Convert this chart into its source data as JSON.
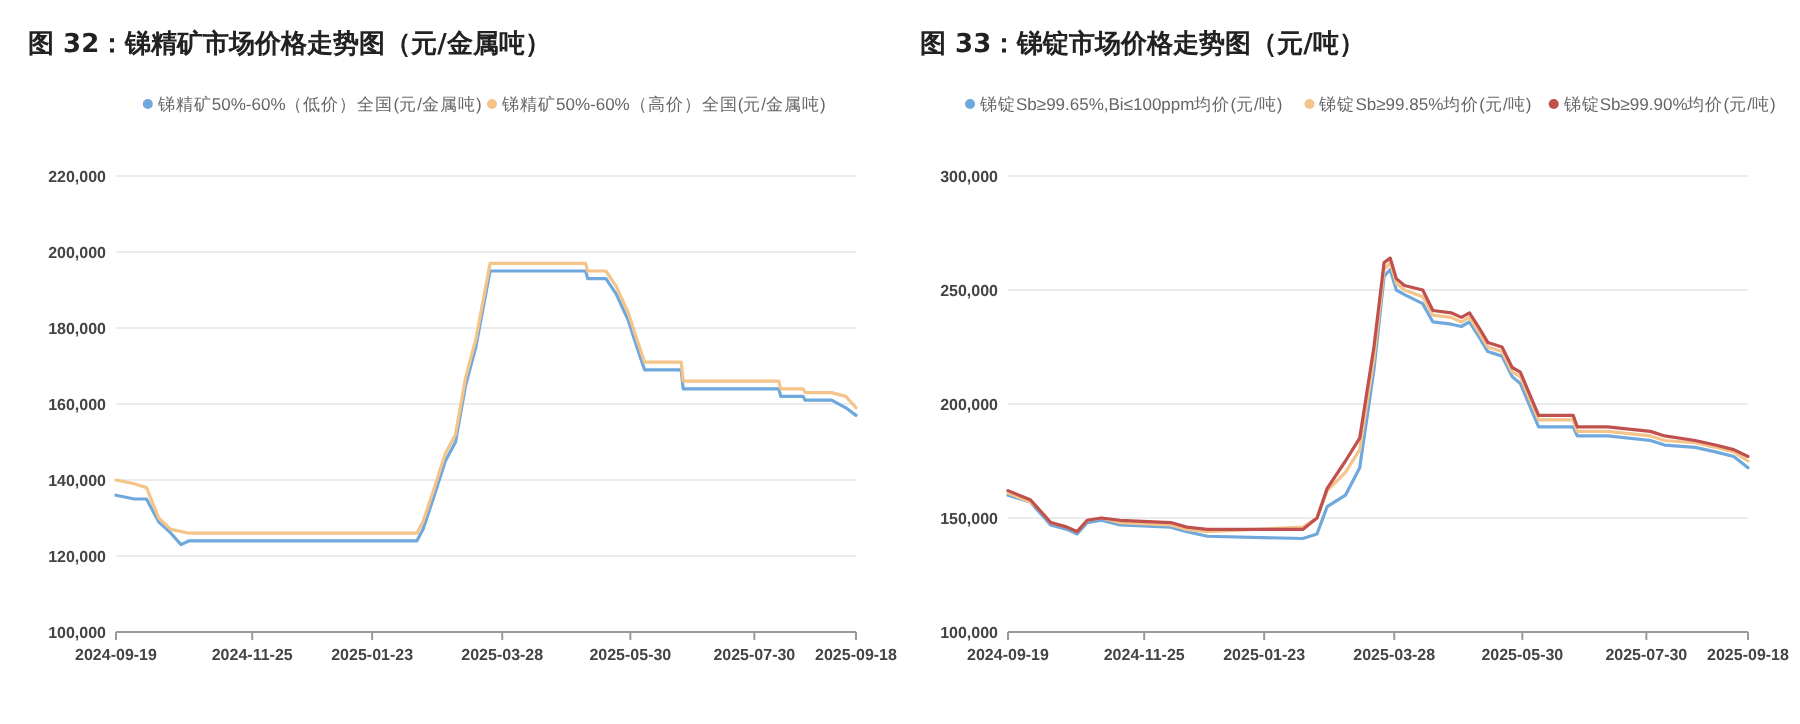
{
  "chart_data": [
    {
      "type": "line",
      "title": "图 32：锑精矿市场价格走势图（元/金属吨）",
      "xlim": [
        "2024-09-19",
        "2025-09-18"
      ],
      "xticks": [
        "2024-09-19",
        "2024-11-25",
        "2025-01-23",
        "2025-03-28",
        "2025-05-30",
        "2025-07-30",
        "2025-09-18"
      ],
      "ylim": [
        100000,
        220000
      ],
      "yticks": [
        {
          "value": 100000,
          "label": "100,000"
        },
        {
          "value": 120000,
          "label": "120,000"
        },
        {
          "value": 140000,
          "label": "140,000"
        },
        {
          "value": 160000,
          "label": "160,000"
        },
        {
          "value": 180000,
          "label": "180,000"
        },
        {
          "value": 200000,
          "label": "200,000"
        },
        {
          "value": 220000,
          "label": "220,000"
        }
      ],
      "grid": "y",
      "legend": "top",
      "series": [
        {
          "name": "锑精矿50%-60%（低价）全国(元/金属吨)",
          "color": "#6fa8dc",
          "x": [
            "2024-09-19",
            "2024-09-28",
            "2024-10-04",
            "2024-10-10",
            "2024-10-16",
            "2024-10-21",
            "2024-10-25",
            "2025-02-14",
            "2025-02-17",
            "2025-02-22",
            "2025-02-28",
            "2025-03-05",
            "2025-03-10",
            "2025-03-15",
            "2025-03-22",
            "2025-05-08",
            "2025-05-09",
            "2025-05-18",
            "2025-05-23",
            "2025-05-29",
            "2025-06-01",
            "2025-06-06",
            "2025-06-24",
            "2025-06-25",
            "2025-08-11",
            "2025-08-12",
            "2025-08-23",
            "2025-08-24",
            "2025-09-06",
            "2025-09-13",
            "2025-09-18"
          ],
          "values": [
            136000,
            135000,
            135000,
            129000,
            126000,
            123000,
            124000,
            124000,
            127000,
            135000,
            145000,
            150000,
            165000,
            175000,
            195000,
            195000,
            193000,
            193000,
            189000,
            182000,
            177000,
            169000,
            169000,
            164000,
            164000,
            162000,
            162000,
            161000,
            161000,
            159000,
            157000
          ]
        },
        {
          "name": "锑精矿50%-60%（高价）全国(元/金属吨)",
          "color": "#f5c48a",
          "x": [
            "2024-09-19",
            "2024-09-28",
            "2024-10-04",
            "2024-10-10",
            "2024-10-16",
            "2024-10-25",
            "2024-10-28",
            "2025-02-14",
            "2025-02-17",
            "2025-02-22",
            "2025-02-28",
            "2025-03-05",
            "2025-03-10",
            "2025-03-15",
            "2025-03-22",
            "2025-05-08",
            "2025-05-09",
            "2025-05-18",
            "2025-05-23",
            "2025-05-29",
            "2025-06-01",
            "2025-06-06",
            "2025-06-24",
            "2025-06-25",
            "2025-08-11",
            "2025-08-12",
            "2025-08-23",
            "2025-08-24",
            "2025-09-06",
            "2025-09-13",
            "2025-09-18"
          ],
          "values": [
            140000,
            139000,
            138000,
            130000,
            127000,
            126000,
            126000,
            126000,
            129000,
            137000,
            147000,
            152000,
            167000,
            177000,
            197000,
            197000,
            195000,
            195000,
            191000,
            184000,
            179000,
            171000,
            171000,
            166000,
            166000,
            164000,
            164000,
            163000,
            163000,
            162000,
            159000
          ]
        }
      ]
    },
    {
      "type": "line",
      "title": "图 33：锑锭市场价格走势图（元/吨）",
      "xlim": [
        "2024-09-19",
        "2025-09-18"
      ],
      "xticks": [
        "2024-09-19",
        "2024-11-25",
        "2025-01-23",
        "2025-03-28",
        "2025-05-30",
        "2025-07-30",
        "2025-09-18"
      ],
      "ylim": [
        100000,
        300000
      ],
      "yticks": [
        {
          "value": 100000,
          "label": "100,000"
        },
        {
          "value": 150000,
          "label": "150,000"
        },
        {
          "value": 200000,
          "label": "200,000"
        },
        {
          "value": 250000,
          "label": "250,000"
        },
        {
          "value": 300000,
          "label": "300,000"
        }
      ],
      "grid": "y",
      "legend": "top",
      "series": [
        {
          "name": "锑锭Sb≥99.65%,Bi≤100ppm均价(元/吨)",
          "color": "#6fa8dc",
          "x": [
            "2024-09-19",
            "2024-09-30",
            "2024-10-03",
            "2024-10-10",
            "2024-10-18",
            "2024-10-23",
            "2024-10-28",
            "2024-11-04",
            "2024-11-13",
            "2024-12-08",
            "2024-12-16",
            "2024-12-26",
            "2025-02-11",
            "2025-02-18",
            "2025-02-23",
            "2025-03-04",
            "2025-03-11",
            "2025-03-18",
            "2025-03-23",
            "2025-03-26",
            "2025-03-29",
            "2025-04-02",
            "2025-04-11",
            "2025-04-16",
            "2025-04-25",
            "2025-04-30",
            "2025-05-04",
            "2025-05-09",
            "2025-05-13",
            "2025-05-20",
            "2025-05-25",
            "2025-05-29",
            "2025-06-07",
            "2025-06-24",
            "2025-06-26",
            "2025-07-11",
            "2025-08-01",
            "2025-08-08",
            "2025-08-23",
            "2025-09-02",
            "2025-09-11",
            "2025-09-18"
          ],
          "values": [
            160000,
            157000,
            154000,
            147000,
            145000,
            143000,
            148000,
            149000,
            147000,
            146000,
            144000,
            142000,
            141000,
            143000,
            155000,
            160000,
            172000,
            215000,
            256000,
            259000,
            250000,
            248000,
            244000,
            236000,
            235000,
            234000,
            236000,
            229000,
            223000,
            221000,
            212000,
            209000,
            190000,
            190000,
            186000,
            186000,
            184000,
            182000,
            181000,
            179000,
            177000,
            172000
          ]
        },
        {
          "name": "锑锭Sb≥99.85%均价(元/吨)",
          "color": "#f5c48a",
          "x": [
            "2024-09-19",
            "2024-09-30",
            "2024-10-03",
            "2024-10-10",
            "2024-10-18",
            "2024-10-23",
            "2024-10-28",
            "2024-11-04",
            "2024-11-13",
            "2024-12-08",
            "2024-12-16",
            "2024-12-26",
            "2025-02-11",
            "2025-02-18",
            "2025-02-23",
            "2025-03-04",
            "2025-03-11",
            "2025-03-18",
            "2025-03-23",
            "2025-03-26",
            "2025-03-29",
            "2025-04-02",
            "2025-04-11",
            "2025-04-16",
            "2025-04-25",
            "2025-04-30",
            "2025-05-04",
            "2025-05-09",
            "2025-05-13",
            "2025-05-20",
            "2025-05-25",
            "2025-05-29",
            "2025-06-07",
            "2025-06-24",
            "2025-06-26",
            "2025-07-11",
            "2025-08-01",
            "2025-08-08",
            "2025-08-23",
            "2025-09-02",
            "2025-09-11",
            "2025-09-18"
          ],
          "values": [
            161000,
            157000,
            155000,
            148000,
            146000,
            144000,
            149000,
            150000,
            148000,
            147000,
            145000,
            144000,
            146000,
            150000,
            162000,
            170000,
            180000,
            220000,
            259000,
            262000,
            253000,
            250000,
            247000,
            239000,
            238000,
            236000,
            238000,
            231000,
            225000,
            223000,
            214000,
            212000,
            193000,
            193000,
            188000,
            188000,
            186000,
            184000,
            183000,
            181000,
            179000,
            175000
          ]
        },
        {
          "name": "锑锭Sb≥99.90%均价(元/吨)",
          "color": "#c0504d",
          "x": [
            "2024-09-19",
            "2024-09-30",
            "2024-10-03",
            "2024-10-10",
            "2024-10-18",
            "2024-10-23",
            "2024-10-28",
            "2024-11-04",
            "2024-11-13",
            "2024-12-08",
            "2024-12-16",
            "2024-12-26",
            "2025-02-11",
            "2025-02-18",
            "2025-02-23",
            "2025-03-04",
            "2025-03-11",
            "2025-03-18",
            "2025-03-23",
            "2025-03-26",
            "2025-03-29",
            "2025-04-02",
            "2025-04-11",
            "2025-04-16",
            "2025-04-25",
            "2025-04-30",
            "2025-05-04",
            "2025-05-09",
            "2025-05-13",
            "2025-05-20",
            "2025-05-25",
            "2025-05-29",
            "2025-06-07",
            "2025-06-24",
            "2025-06-26",
            "2025-07-11",
            "2025-08-01",
            "2025-08-08",
            "2025-08-23",
            "2025-09-02",
            "2025-09-11",
            "2025-09-18"
          ],
          "values": [
            162000,
            158000,
            155000,
            148000,
            146000,
            144000,
            149000,
            150000,
            149000,
            148000,
            146000,
            145000,
            145000,
            150000,
            163000,
            175000,
            185000,
            225000,
            262000,
            264000,
            255000,
            252000,
            250000,
            241000,
            240000,
            238000,
            240000,
            233000,
            227000,
            225000,
            216000,
            214000,
            195000,
            195000,
            190000,
            190000,
            188000,
            186000,
            184000,
            182000,
            180000,
            177000
          ]
        }
      ]
    }
  ]
}
